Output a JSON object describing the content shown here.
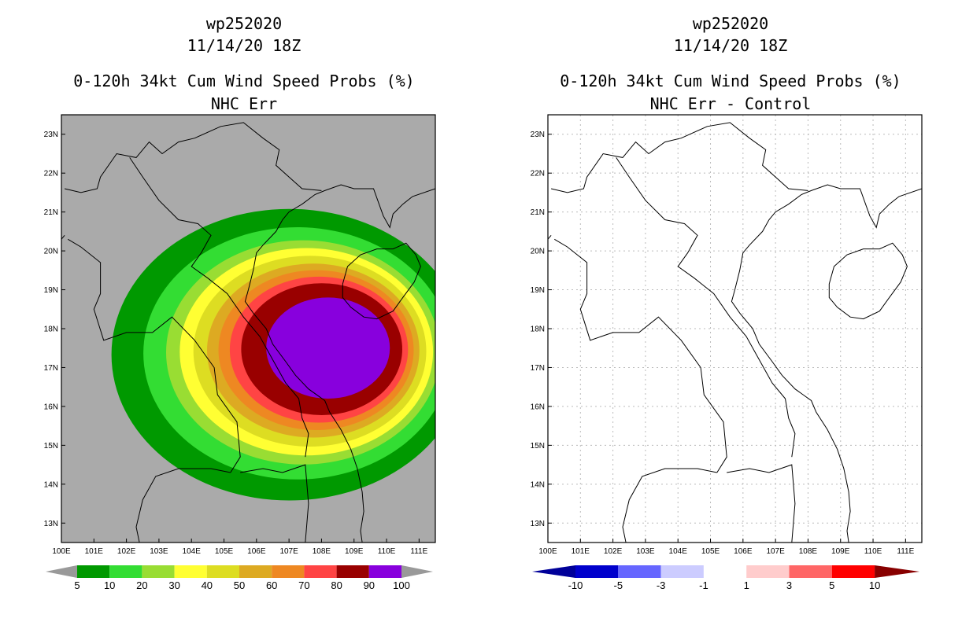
{
  "chart_data": [
    {
      "type": "heatmap",
      "title_lines": [
        "wp252020",
        "11/14/20 18Z",
        "0-120h 34kt Cum Wind Speed Probs (%)",
        "NHC Err"
      ],
      "xlabel": "",
      "ylabel": "",
      "xlim": [
        100,
        111.5
      ],
      "ylim": [
        12.5,
        23.5
      ],
      "x_ticks": [
        "100E",
        "101E",
        "102E",
        "103E",
        "104E",
        "105E",
        "106E",
        "107E",
        "108E",
        "109E",
        "110E",
        "111E"
      ],
      "y_ticks": [
        "13N",
        "14N",
        "15N",
        "16N",
        "17N",
        "18N",
        "19N",
        "20N",
        "21N",
        "22N",
        "23N"
      ],
      "grid": false,
      "center_lon": 108.2,
      "center_lat": 17.5,
      "colorbar": {
        "labels": [
          "5",
          "10",
          "20",
          "30",
          "40",
          "50",
          "60",
          "70",
          "80",
          "90",
          "100"
        ],
        "colors": [
          "#009900",
          "#33dd33",
          "#99dd33",
          "#ffff33",
          "#dddd22",
          "#ddaa22",
          "#ee8822",
          "#ff4444",
          "#990000",
          "#8800dd"
        ]
      },
      "contours": [
        {
          "level": 5,
          "color": "#009900",
          "spread": 3.4
        },
        {
          "level": 10,
          "color": "#33dd33",
          "spread": 2.7
        },
        {
          "level": 20,
          "color": "#99dd33",
          "spread": 2.2
        },
        {
          "level": 30,
          "color": "#ffff33",
          "spread": 1.9
        },
        {
          "level": 40,
          "color": "#dddd22",
          "spread": 1.6
        },
        {
          "level": 50,
          "color": "#ddaa22",
          "spread": 1.3
        },
        {
          "level": 60,
          "color": "#ee8822",
          "spread": 1.05
        },
        {
          "level": 70,
          "color": "#ff4444",
          "spread": 0.8
        },
        {
          "level": 80,
          "color": "#990000",
          "spread": 0.55
        },
        {
          "level": 90,
          "color": "#8800dd",
          "spread": 0.0
        }
      ]
    },
    {
      "type": "heatmap",
      "title_lines": [
        "wp252020",
        "11/14/20 18Z",
        "0-120h 34kt Cum Wind Speed Probs (%)",
        "NHC Err - Control"
      ],
      "xlabel": "",
      "ylabel": "",
      "xlim": [
        100,
        111.5
      ],
      "ylim": [
        12.5,
        23.5
      ],
      "x_ticks": [
        "100E",
        "101E",
        "102E",
        "103E",
        "104E",
        "105E",
        "106E",
        "107E",
        "108E",
        "109E",
        "110E",
        "111E"
      ],
      "y_ticks": [
        "13N",
        "14N",
        "15N",
        "16N",
        "17N",
        "18N",
        "19N",
        "20N",
        "21N",
        "22N",
        "23N"
      ],
      "grid": true,
      "colorbar": {
        "labels": [
          "-10",
          "-5",
          "-3",
          "-1",
          "1",
          "3",
          "5",
          "10"
        ],
        "colors": [
          "#0000cc",
          "#6666ff",
          "#ccccff",
          "#ffffff",
          "#ffcccc",
          "#ff6666",
          "#ff0000"
        ]
      },
      "values": "all zero difference"
    }
  ]
}
